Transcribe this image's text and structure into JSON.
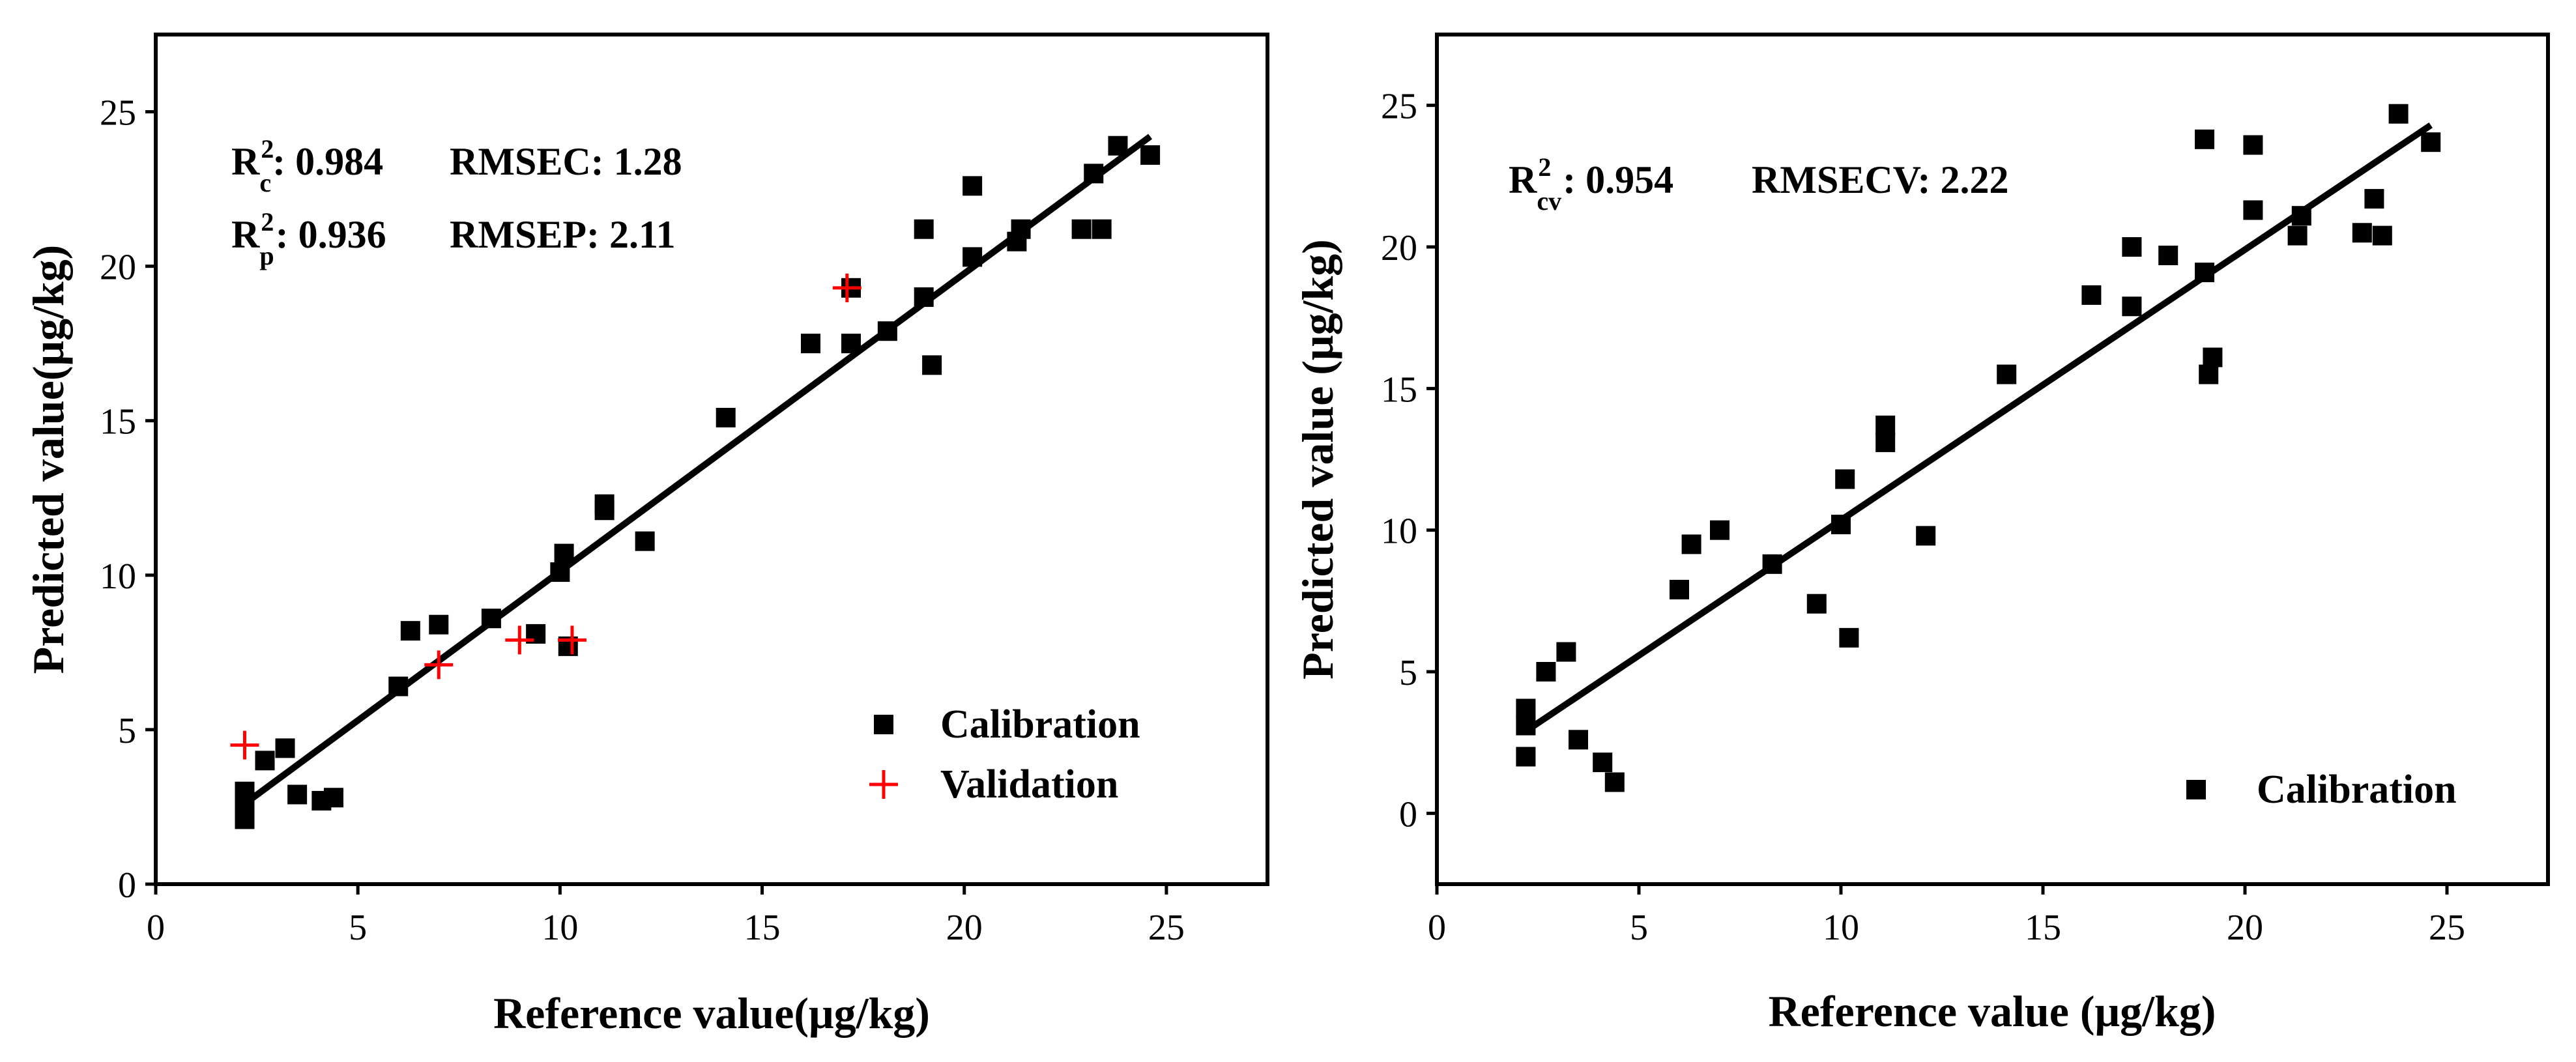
{
  "chart_data": [
    {
      "type": "scatter",
      "xlabel": "Reference value(μg/kg)",
      "ylabel": "Predicted value(μg/kg)",
      "xlim": [
        0,
        27.5
      ],
      "ylim": [
        0,
        27.5
      ],
      "xticks": [
        0,
        5,
        10,
        15,
        20,
        25
      ],
      "yticks": [
        0,
        5,
        10,
        15,
        20,
        25
      ],
      "stats": [
        {
          "r_base": "R",
          "r_sub": "c",
          "r_sup": "2",
          "r_value": ": 0.984",
          "error": "RMSEC: 1.28"
        },
        {
          "r_base": "R",
          "r_sub": "p",
          "r_sup": "2",
          "r_value": ": 0.936",
          "error": "RMSEP: 2.11"
        }
      ],
      "fit_line": {
        "x": [
          2.2,
          24.6
        ],
        "y": [
          2.6,
          24.2
        ]
      },
      "series": [
        {
          "name": "Calibration",
          "marker": "square",
          "color": "#000000",
          "points": [
            [
              2.2,
              2.1
            ],
            [
              2.2,
              2.6
            ],
            [
              2.2,
              3.0
            ],
            [
              2.7,
              4.0
            ],
            [
              3.2,
              4.4
            ],
            [
              3.5,
              2.9
            ],
            [
              4.1,
              2.7
            ],
            [
              4.4,
              2.8
            ],
            [
              6.0,
              6.4
            ],
            [
              6.3,
              8.2
            ],
            [
              7.0,
              8.4
            ],
            [
              8.3,
              8.6
            ],
            [
              9.4,
              8.1
            ],
            [
              10.0,
              10.1
            ],
            [
              10.1,
              10.7
            ],
            [
              10.2,
              7.7
            ],
            [
              11.1,
              12.1
            ],
            [
              11.1,
              12.3
            ],
            [
              12.1,
              11.1
            ],
            [
              14.1,
              15.1
            ],
            [
              16.2,
              17.5
            ],
            [
              17.2,
              17.5
            ],
            [
              17.2,
              19.3
            ],
            [
              18.1,
              17.9
            ],
            [
              19.0,
              19.0
            ],
            [
              19.0,
              21.2
            ],
            [
              19.2,
              16.8
            ],
            [
              20.2,
              20.3
            ],
            [
              20.2,
              22.6
            ],
            [
              21.3,
              20.8
            ],
            [
              21.4,
              21.2
            ],
            [
              22.9,
              21.2
            ],
            [
              23.2,
              23.0
            ],
            [
              23.4,
              21.2
            ],
            [
              23.8,
              23.9
            ],
            [
              24.6,
              23.6
            ]
          ]
        },
        {
          "name": "Validation",
          "marker": "plus",
          "color": "#ff0000",
          "points": [
            [
              2.2,
              4.5
            ],
            [
              7.0,
              7.1
            ],
            [
              9.0,
              7.9
            ],
            [
              10.3,
              7.9
            ],
            [
              17.1,
              19.3
            ]
          ]
        }
      ],
      "legend": "bottom-right"
    },
    {
      "type": "scatter",
      "xlabel": "Reference value (μg/kg)",
      "ylabel": "Predicted value (μg/kg)",
      "xlim": [
        0,
        27.5
      ],
      "ylim": [
        -2.5,
        27.5
      ],
      "xticks": [
        0,
        5,
        10,
        15,
        20,
        25
      ],
      "yticks": [
        0,
        5,
        10,
        15,
        20,
        25
      ],
      "stats": [
        {
          "r_base": "R",
          "r_sub": "cv",
          "r_sup": "2",
          "r_value": ": 0.954",
          "error": "RMSECV: 2.22"
        }
      ],
      "fit_line": {
        "x": [
          2.2,
          24.6
        ],
        "y": [
          2.9,
          24.3
        ]
      },
      "series": [
        {
          "name": "Calibration",
          "marker": "square",
          "color": "#000000",
          "points": [
            [
              2.2,
              2.0
            ],
            [
              2.2,
              3.1
            ],
            [
              2.2,
              3.7
            ],
            [
              2.7,
              5.0
            ],
            [
              3.2,
              5.7
            ],
            [
              3.5,
              2.6
            ],
            [
              4.1,
              1.8
            ],
            [
              4.4,
              1.1
            ],
            [
              6.0,
              7.9
            ],
            [
              6.3,
              9.5
            ],
            [
              7.0,
              10.0
            ],
            [
              8.3,
              8.8
            ],
            [
              9.4,
              7.4
            ],
            [
              10.0,
              10.2
            ],
            [
              10.1,
              11.8
            ],
            [
              10.2,
              6.2
            ],
            [
              11.1,
              13.1
            ],
            [
              11.1,
              13.7
            ],
            [
              12.1,
              9.8
            ],
            [
              14.1,
              15.5
            ],
            [
              16.2,
              18.3
            ],
            [
              17.2,
              17.9
            ],
            [
              17.2,
              20.0
            ],
            [
              18.1,
              19.7
            ],
            [
              19.0,
              19.1
            ],
            [
              19.0,
              23.8
            ],
            [
              19.1,
              15.5
            ],
            [
              19.2,
              16.1
            ],
            [
              20.2,
              21.3
            ],
            [
              20.2,
              23.6
            ],
            [
              21.3,
              20.4
            ],
            [
              21.4,
              21.1
            ],
            [
              22.9,
              20.5
            ],
            [
              23.2,
              21.7
            ],
            [
              23.4,
              20.4
            ],
            [
              23.8,
              24.7
            ],
            [
              24.6,
              23.7
            ]
          ]
        }
      ],
      "legend": "bottom-right"
    }
  ]
}
